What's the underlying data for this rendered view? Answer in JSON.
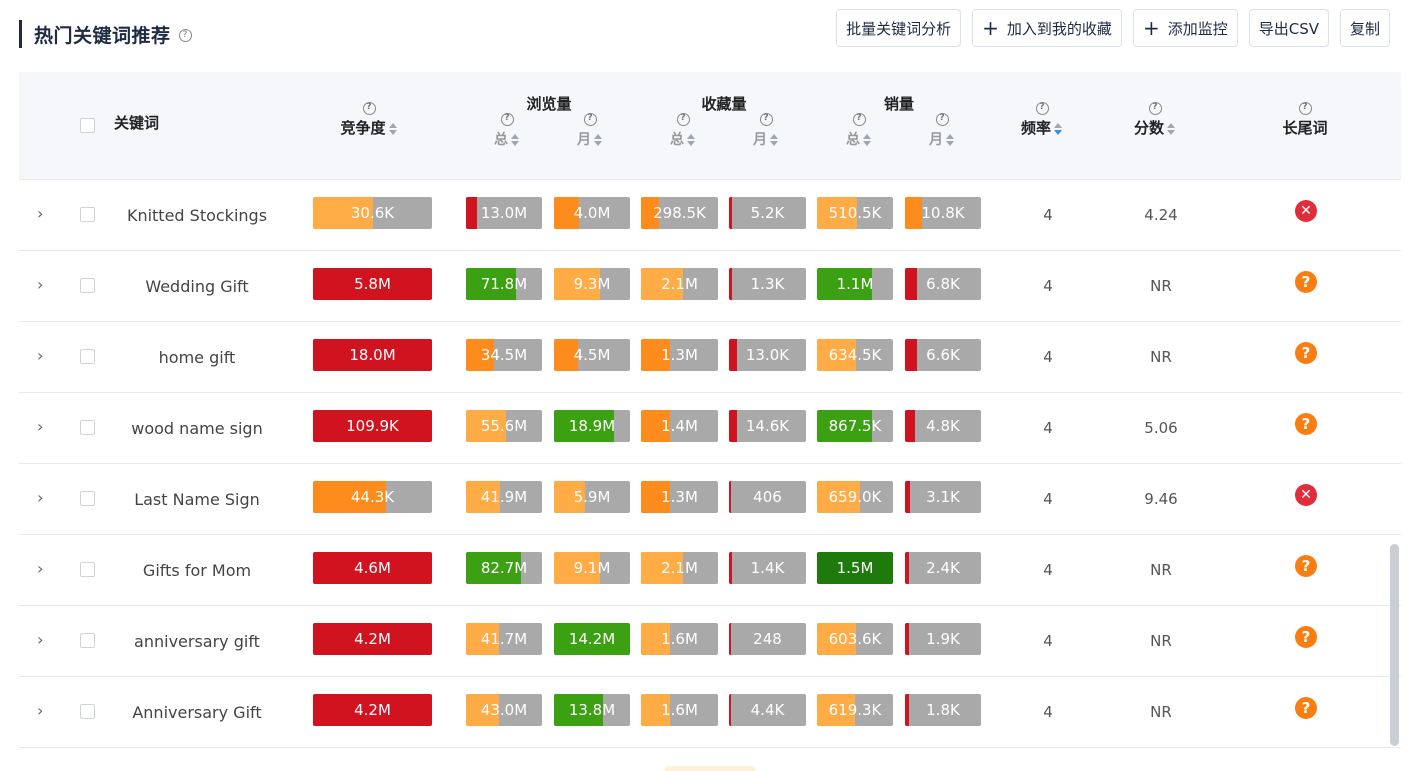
{
  "title": "热门关键词推荐",
  "toolbar": {
    "batch_analyze": "批量关键词分析",
    "add_favorite": "加入到我的收藏",
    "add_monitor": "添加监控",
    "export_csv": "导出CSV",
    "copy": "复制"
  },
  "headers": {
    "keyword": "关键词",
    "competition": "竞争度",
    "views": "浏览量",
    "favorites": "收藏量",
    "sales": "销量",
    "frequency": "频率",
    "score": "分数",
    "longtail": "长尾词",
    "total": "总",
    "month": "月"
  },
  "colors": {
    "red": "#d0131f",
    "orange": "#fd8c1c",
    "light_orange": "#ffab46",
    "green": "#3ba112",
    "dark_green": "#1f7a0c",
    "gray": "#a9a9a9"
  },
  "rows": [
    {
      "keyword": "Knitted Stockings",
      "competition": {
        "text": "30.6K",
        "color": "light_orange",
        "fill": 0.5
      },
      "views_total": {
        "text": "13.0M",
        "color": "red",
        "fill": 0.14
      },
      "views_month": {
        "text": "4.0M",
        "color": "orange",
        "fill": 0.33
      },
      "fav_total": {
        "text": "298.5K",
        "color": "orange",
        "fill": 0.24
      },
      "fav_month": {
        "text": "5.2K",
        "color": "red",
        "fill": 0.04
      },
      "sales_total": {
        "text": "510.5K",
        "color": "light_orange",
        "fill": 0.53
      },
      "sales_month": {
        "text": "10.8K",
        "color": "orange",
        "fill": 0.22
      },
      "frequency": "4",
      "score": "4.24",
      "longtail": "no"
    },
    {
      "keyword": "Wedding Gift",
      "competition": {
        "text": "5.8M",
        "color": "red",
        "fill": 1.0
      },
      "views_total": {
        "text": "71.8M",
        "color": "green",
        "fill": 0.66
      },
      "views_month": {
        "text": "9.3M",
        "color": "light_orange",
        "fill": 0.6
      },
      "fav_total": {
        "text": "2.1M",
        "color": "light_orange",
        "fill": 0.55
      },
      "fav_month": {
        "text": "1.3K",
        "color": "red",
        "fill": 0.04
      },
      "sales_total": {
        "text": "1.1M",
        "color": "green",
        "fill": 0.73
      },
      "sales_month": {
        "text": "6.8K",
        "color": "red",
        "fill": 0.16
      },
      "frequency": "4",
      "score": "NR",
      "longtail": "unknown"
    },
    {
      "keyword": "home gift",
      "competition": {
        "text": "18.0M",
        "color": "red",
        "fill": 1.0
      },
      "views_total": {
        "text": "34.5M",
        "color": "orange",
        "fill": 0.37
      },
      "views_month": {
        "text": "4.5M",
        "color": "orange",
        "fill": 0.32
      },
      "fav_total": {
        "text": "1.3M",
        "color": "orange",
        "fill": 0.38
      },
      "fav_month": {
        "text": "13.0K",
        "color": "red",
        "fill": 0.1
      },
      "sales_total": {
        "text": "634.5K",
        "color": "light_orange",
        "fill": 0.51
      },
      "sales_month": {
        "text": "6.6K",
        "color": "red",
        "fill": 0.16
      },
      "frequency": "4",
      "score": "NR",
      "longtail": "unknown"
    },
    {
      "keyword": "wood name sign",
      "competition": {
        "text": "109.9K",
        "color": "red",
        "fill": 1.0
      },
      "views_total": {
        "text": "55.6M",
        "color": "light_orange",
        "fill": 0.53
      },
      "views_month": {
        "text": "18.9M",
        "color": "green",
        "fill": 0.79
      },
      "fav_total": {
        "text": "1.4M",
        "color": "orange",
        "fill": 0.38
      },
      "fav_month": {
        "text": "14.6K",
        "color": "red",
        "fill": 0.1
      },
      "sales_total": {
        "text": "867.5K",
        "color": "green",
        "fill": 0.73
      },
      "sales_month": {
        "text": "4.8K",
        "color": "red",
        "fill": 0.13
      },
      "frequency": "4",
      "score": "5.06",
      "longtail": "unknown"
    },
    {
      "keyword": "Last Name Sign",
      "competition": {
        "text": "44.3K",
        "color": "orange",
        "fill": 0.61
      },
      "views_total": {
        "text": "41.9M",
        "color": "light_orange",
        "fill": 0.45
      },
      "views_month": {
        "text": "5.9M",
        "color": "light_orange",
        "fill": 0.41
      },
      "fav_total": {
        "text": "1.3M",
        "color": "orange",
        "fill": 0.38
      },
      "fav_month": {
        "text": "406",
        "color": "red",
        "fill": 0.03
      },
      "sales_total": {
        "text": "659.0K",
        "color": "light_orange",
        "fill": 0.57
      },
      "sales_month": {
        "text": "3.1K",
        "color": "red",
        "fill": 0.07
      },
      "frequency": "4",
      "score": "9.46",
      "longtail": "no"
    },
    {
      "keyword": "Gifts for Mom",
      "competition": {
        "text": "4.6M",
        "color": "red",
        "fill": 1.0
      },
      "views_total": {
        "text": "82.7M",
        "color": "green",
        "fill": 0.72
      },
      "views_month": {
        "text": "9.1M",
        "color": "light_orange",
        "fill": 0.6
      },
      "fav_total": {
        "text": "2.1M",
        "color": "light_orange",
        "fill": 0.55
      },
      "fav_month": {
        "text": "1.4K",
        "color": "red",
        "fill": 0.04
      },
      "sales_total": {
        "text": "1.5M",
        "color": "dark_green",
        "fill": 1.0
      },
      "sales_month": {
        "text": "2.4K",
        "color": "red",
        "fill": 0.05
      },
      "frequency": "4",
      "score": "NR",
      "longtail": "unknown"
    },
    {
      "keyword": "anniversary gift",
      "competition": {
        "text": "4.2M",
        "color": "red",
        "fill": 1.0
      },
      "views_total": {
        "text": "41.7M",
        "color": "light_orange",
        "fill": 0.43
      },
      "views_month": {
        "text": "14.2M",
        "color": "green",
        "fill": 1.0
      },
      "fav_total": {
        "text": "1.6M",
        "color": "light_orange",
        "fill": 0.38
      },
      "fav_month": {
        "text": "248",
        "color": "red",
        "fill": 0.03
      },
      "sales_total": {
        "text": "603.6K",
        "color": "light_orange",
        "fill": 0.51
      },
      "sales_month": {
        "text": "1.9K",
        "color": "red",
        "fill": 0.05
      },
      "frequency": "4",
      "score": "NR",
      "longtail": "unknown"
    },
    {
      "keyword": "Anniversary Gift",
      "competition": {
        "text": "4.2M",
        "color": "red",
        "fill": 1.0
      },
      "views_total": {
        "text": "43.0M",
        "color": "light_orange",
        "fill": 0.43
      },
      "views_month": {
        "text": "13.8M",
        "color": "green",
        "fill": 0.64
      },
      "fav_total": {
        "text": "1.6M",
        "color": "light_orange",
        "fill": 0.38
      },
      "fav_month": {
        "text": "4.4K",
        "color": "red",
        "fill": 0.03
      },
      "sales_total": {
        "text": "619.3K",
        "color": "light_orange",
        "fill": 0.5
      },
      "sales_month": {
        "text": "1.8K",
        "color": "red",
        "fill": 0.05
      },
      "frequency": "4",
      "score": "NR",
      "longtail": "unknown"
    }
  ]
}
